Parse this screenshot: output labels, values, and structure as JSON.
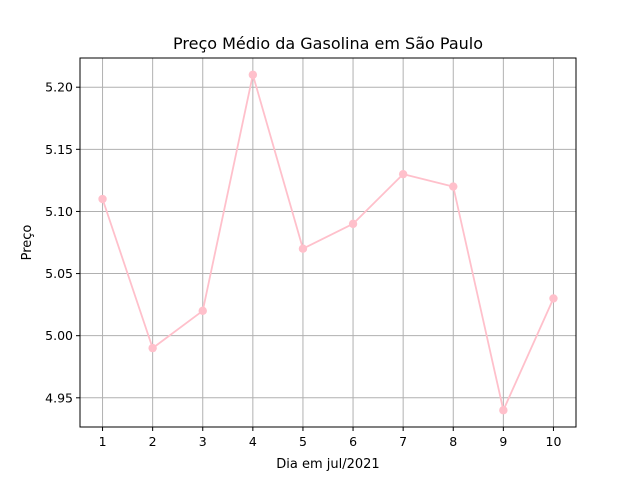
{
  "chart_data": {
    "type": "line",
    "title": "Preço Médio da Gasolina em São Paulo",
    "xlabel": "Dia em jul/2021",
    "ylabel": "Preço",
    "x": [
      1,
      2,
      3,
      4,
      5,
      6,
      7,
      8,
      9,
      10
    ],
    "series": [
      {
        "values": [
          5.11,
          4.99,
          5.02,
          5.21,
          5.07,
          5.09,
          5.13,
          5.12,
          4.94,
          5.03
        ]
      }
    ],
    "xticks": [
      1,
      2,
      3,
      4,
      5,
      6,
      7,
      8,
      9,
      10
    ],
    "yticks": [
      "4.95",
      "5.00",
      "5.05",
      "5.10",
      "5.15",
      "5.20"
    ],
    "xlim": [
      0.55,
      10.45
    ],
    "ylim": [
      4.9265,
      5.2235
    ],
    "grid": true,
    "line_color": "#ffc0cb",
    "marker": "circle"
  }
}
